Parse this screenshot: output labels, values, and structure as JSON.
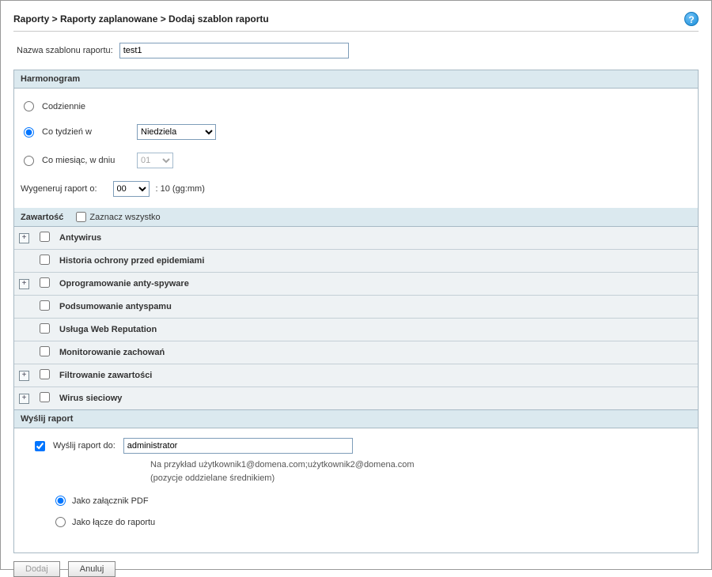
{
  "breadcrumb": "Raporty > Raporty zaplanowane > Dodaj szablon raportu",
  "help_glyph": "?",
  "template_name": {
    "label": "Nazwa szablonu raportu:",
    "value": "test1"
  },
  "schedule": {
    "title": "Harmonogram",
    "options": {
      "daily_label": "Codziennie",
      "weekly_label": "Co tydzień w",
      "weekly_day": "Niedziela",
      "monthly_label": "Co miesiąc, w dniu",
      "monthly_day": "01",
      "selected": "weekly"
    },
    "generate": {
      "label": "Wygeneruj raport o:",
      "hour": "00",
      "suffix": ":   10 (gg:mm)"
    }
  },
  "content": {
    "title": "Zawartość",
    "select_all_label": "Zaznacz wszystko",
    "rows": [
      {
        "expandable": true,
        "label": "Antywirus"
      },
      {
        "expandable": false,
        "label": "Historia ochrony przed epidemiami"
      },
      {
        "expandable": true,
        "label": "Oprogramowanie anty-spyware"
      },
      {
        "expandable": false,
        "label": "Podsumowanie antyspamu"
      },
      {
        "expandable": false,
        "label": "Usługa Web Reputation"
      },
      {
        "expandable": false,
        "label": "Monitorowanie zachowań"
      },
      {
        "expandable": true,
        "label": "Filtrowanie zawartości"
      },
      {
        "expandable": true,
        "label": "Wirus sieciowy"
      }
    ]
  },
  "send": {
    "title": "Wyślij raport",
    "to_label": "Wyślij raport do:",
    "to_value": "administrator",
    "hint_line1": "Na przykład użytkownik1@domena.com;użytkownik2@domena.com",
    "hint_line2": "(pozycje oddzielane średnikiem)",
    "format": {
      "pdf_label": "Jako załącznik PDF",
      "link_label": "Jako łącze do raportu",
      "selected": "pdf"
    }
  },
  "buttons": {
    "add": "Dodaj",
    "cancel": "Anuluj"
  },
  "exp_glyph": "+"
}
